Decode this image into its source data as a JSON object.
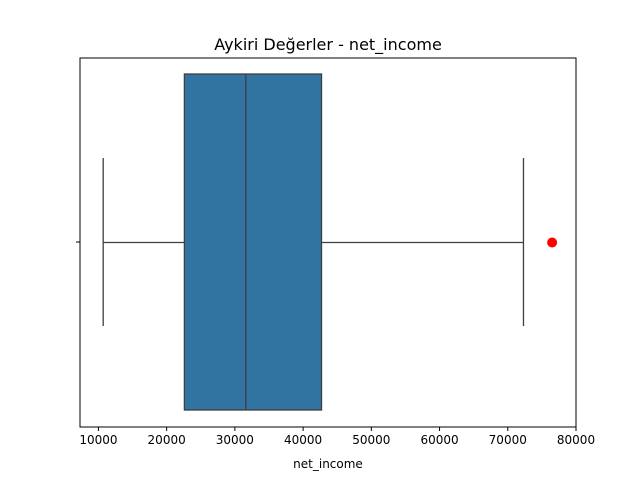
{
  "chart_data": {
    "type": "box",
    "orientation": "horizontal",
    "title": "Aykiri Değerler - net_income",
    "xlabel": "net_income",
    "ylabel": "",
    "xlim": [
      7300,
      80000
    ],
    "xticks": [
      10000,
      20000,
      30000,
      40000,
      50000,
      60000,
      70000,
      80000
    ],
    "xtick_labels": [
      "10000",
      "20000",
      "30000",
      "40000",
      "50000",
      "60000",
      "70000",
      "80000"
    ],
    "grid": false,
    "box": {
      "whisker_low": 10700,
      "q1": 22600,
      "median": 31600,
      "q3": 42700,
      "whisker_high": 72300,
      "outliers": [
        76500
      ]
    },
    "box_color": "#3274a1",
    "outlier_color": "#ff0000",
    "line_color": "#3f3f3f"
  }
}
